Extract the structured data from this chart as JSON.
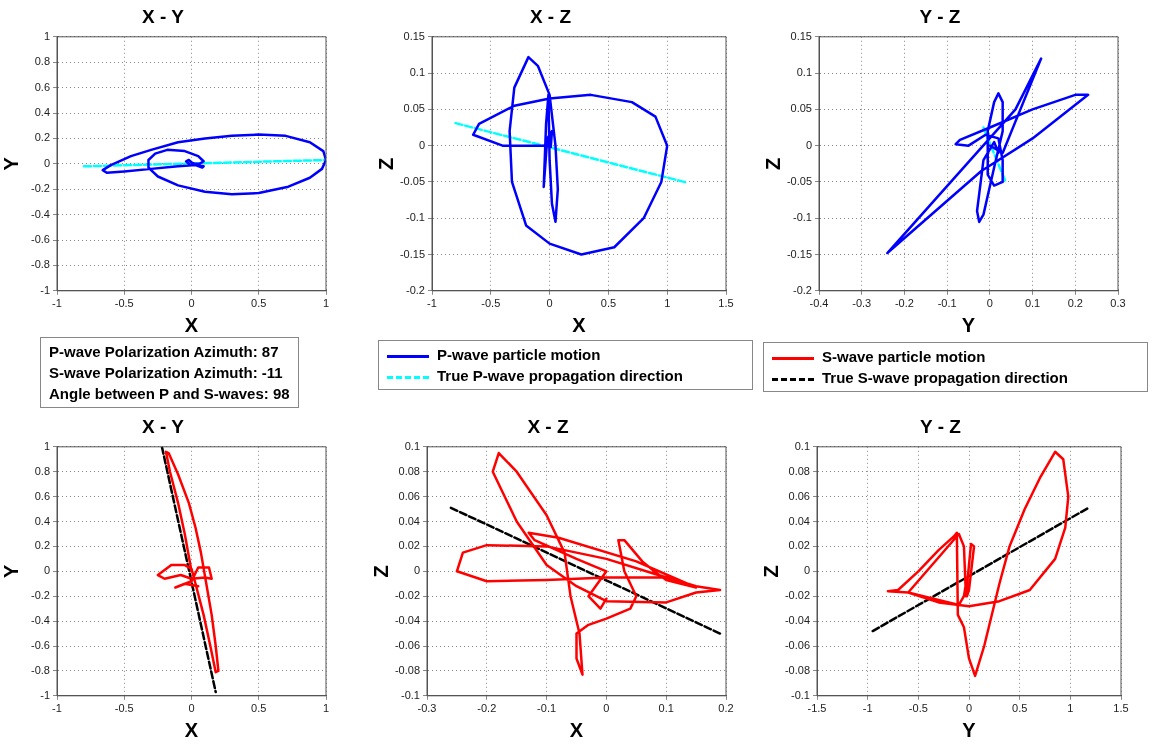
{
  "chart_data": [
    {
      "type": "line",
      "title": "X - Y",
      "xlabel": "X",
      "ylabel": "Y",
      "xlim": [
        -1,
        1
      ],
      "xticks": [
        -1,
        -0.5,
        0,
        0.5,
        1
      ],
      "ylim": [
        -1,
        1
      ],
      "yticks": [
        -1,
        -0.8,
        -0.6,
        -0.4,
        -0.2,
        0,
        0.2,
        0.4,
        0.6,
        0.8,
        1
      ],
      "grid": true,
      "marker": "none",
      "series": [
        {
          "color": "#0000ff",
          "line_style": "solid",
          "x": [
            -0.02,
            -0.04,
            -0.02,
            0,
            0.05,
            0.09,
            0.08,
            0.03,
            -0.1,
            -0.3,
            -0.5,
            -0.63,
            -0.66,
            -0.6,
            -0.45,
            -0.3,
            -0.1,
            0.1,
            0.3,
            0.5,
            0.7,
            0.88,
            0.98,
            1,
            0.97,
            0.88,
            0.72,
            0.5,
            0.3,
            0.1,
            -0.1,
            -0.25,
            -0.32,
            -0.32,
            -0.27,
            -0.18,
            -0.05,
            0.05,
            0.09,
            0.06,
            0
          ],
          "values": [
            0,
            0.02,
            0.03,
            0.01,
            -0.01,
            -0.02,
            -0.03,
            -0.01,
            -0.02,
            -0.04,
            -0.06,
            -0.07,
            -0.05,
            -0.01,
            0.06,
            0.11,
            0.17,
            0.2,
            0.22,
            0.23,
            0.22,
            0.17,
            0.1,
            0.03,
            -0.04,
            -0.11,
            -0.18,
            -0.23,
            -0.24,
            -0.22,
            -0.17,
            -0.1,
            -0.03,
            0.03,
            0.08,
            0.11,
            0.1,
            0.06,
            0.02,
            0,
            0
          ]
        },
        {
          "color": "#00ffff",
          "line_style": "dashed",
          "x": [
            -0.8,
            1
          ],
          "values": [
            -0.02,
            0.03
          ]
        }
      ]
    },
    {
      "type": "line",
      "title": "X - Z",
      "xlabel": "X",
      "ylabel": "Z",
      "xlim": [
        -1,
        1.5
      ],
      "xticks": [
        -1,
        -0.5,
        0,
        0.5,
        1,
        1.5
      ],
      "ylim": [
        -0.2,
        0.15
      ],
      "yticks": [
        -0.2,
        -0.15,
        -0.1,
        -0.05,
        0,
        0.05,
        0.1,
        0.15
      ],
      "grid": true,
      "marker": "none",
      "legend": "bottom",
      "series": [
        {
          "name": "P-wave particle motion",
          "color": "#0000ff",
          "line_style": "solid",
          "x": [
            0,
            -0.4,
            -0.65,
            -0.6,
            -0.3,
            0,
            0.35,
            0.7,
            0.9,
            1.0,
            0.95,
            0.8,
            0.55,
            0.27,
            0,
            -0.2,
            -0.32,
            -0.34,
            -0.3,
            -0.18,
            -0.1,
            0,
            0.05,
            0.07,
            0.05,
            0.02,
            0,
            -0.01,
            -0.03,
            -0.05,
            -0.02,
            0.02,
            0.01
          ],
          "values": [
            0,
            0,
            0.015,
            0.03,
            0.055,
            0.065,
            0.07,
            0.06,
            0.04,
            0,
            -0.05,
            -0.1,
            -0.14,
            -0.15,
            -0.135,
            -0.11,
            -0.05,
            0.02,
            0.08,
            0.122,
            0.11,
            0.07,
            0,
            -0.06,
            -0.105,
            -0.08,
            -0.02,
            0.07,
            0.03,
            -0.057,
            0.01,
            0.02,
            -0.002
          ]
        },
        {
          "name": "True P-wave propagation direction",
          "color": "#00ffff",
          "line_style": "dashed",
          "x": [
            -0.8,
            1.17
          ],
          "values": [
            0.031,
            -0.051
          ]
        }
      ]
    },
    {
      "type": "line",
      "title": "Y - Z",
      "xlabel": "Y",
      "ylabel": "Z",
      "xlim": [
        -0.4,
        0.3
      ],
      "xticks": [
        -0.4,
        -0.3,
        -0.2,
        -0.1,
        0,
        0.1,
        0.2,
        0.3
      ],
      "ylim": [
        -0.2,
        0.15
      ],
      "yticks": [
        -0.2,
        -0.15,
        -0.1,
        -0.05,
        0,
        0.05,
        0.1,
        0.15
      ],
      "grid": true,
      "marker": "none",
      "series": [
        {
          "color": "#0000ff",
          "line_style": "solid",
          "x": [
            0,
            0.03,
            0.12,
            0.06,
            -0.24,
            -0.02,
            0.1,
            0.23,
            0.2,
            0.1,
            0,
            -0.07,
            -0.08,
            -0.05,
            -0.01,
            0.02,
            0.03,
            0.03,
            0.01,
            -0.005,
            -0.005,
            0.01,
            0.02,
            0.03,
            0.03,
            0.01,
            -0.015,
            -0.025,
            -0.03,
            -0.015,
            0.01,
            0.02
          ],
          "values": [
            0,
            -0.01,
            0.12,
            0.05,
            -0.148,
            -0.035,
            0.01,
            0.07,
            0.07,
            0.05,
            0.025,
            0.008,
            0.002,
            0,
            0.015,
            0.01,
            -0.02,
            -0.05,
            -0.055,
            -0.04,
            0.02,
            0.06,
            0.072,
            0.06,
            0.02,
            -0.03,
            -0.095,
            -0.105,
            -0.09,
            -0.02,
            0.005,
            -0.01
          ]
        },
        {
          "color": "#00ffff",
          "line_style": "dashed",
          "x": [
            -0.015,
            0.037
          ],
          "values": [
            0.025,
            -0.05
          ]
        }
      ]
    },
    {
      "type": "line",
      "title": "X - Y",
      "xlabel": "X",
      "ylabel": "Y",
      "xlim": [
        -1,
        1
      ],
      "xticks": [
        -1,
        -0.5,
        0,
        0.5,
        1
      ],
      "ylim": [
        -1,
        1
      ],
      "yticks": [
        -1,
        -0.8,
        -0.6,
        -0.4,
        -0.2,
        0,
        0.2,
        0.4,
        0.6,
        0.8,
        1
      ],
      "grid": true,
      "marker": "none",
      "annotations": [
        "P-wave Polarization Azimuth: 87",
        "S-wave Polarization Azimuth: -11",
        "Angle between P and S-waves: 98"
      ],
      "series": [
        {
          "color": "#ff0000",
          "line_style": "solid",
          "x": [
            0,
            -0.05,
            -0.1,
            -0.16,
            -0.19,
            -0.17,
            -0.1,
            -0.02,
            0.03,
            0.07,
            0.11,
            0.15,
            0.18,
            0.2,
            0.18,
            0.14,
            0.09,
            0.03,
            0,
            -0.05,
            -0.15,
            -0.25,
            -0.2,
            -0.08,
            0,
            0.1,
            0.15,
            0.13,
            0.05,
            0,
            -0.12,
            -0.05,
            0.05
          ],
          "values": [
            0,
            0.3,
            0.55,
            0.8,
            0.96,
            0.95,
            0.78,
            0.55,
            0.35,
            0.15,
            -0.1,
            -0.35,
            -0.6,
            -0.8,
            -0.81,
            -0.6,
            -0.35,
            -0.1,
            0.02,
            0.05,
            0.05,
            -0.03,
            -0.06,
            -0.03,
            -0.06,
            -0.05,
            -0.06,
            0.03,
            0.03,
            -0.08,
            -0.13,
            -0.1,
            -0.12
          ]
        },
        {
          "color": "#000000",
          "line_style": "dashed",
          "x": [
            -0.22,
            0.18
          ],
          "values": [
            1,
            -0.97
          ]
        }
      ]
    },
    {
      "type": "line",
      "title": "X - Z",
      "xlabel": "X",
      "ylabel": "Z",
      "xlim": [
        -0.3,
        0.2
      ],
      "xticks": [
        -0.3,
        -0.2,
        -0.1,
        0,
        0.1,
        0.2
      ],
      "ylim": [
        -0.1,
        0.1
      ],
      "yticks": [
        -0.1,
        -0.08,
        -0.06,
        -0.04,
        -0.02,
        0,
        0.02,
        0.04,
        0.06,
        0.08,
        0.1
      ],
      "grid": true,
      "marker": "none",
      "series": [
        {
          "color": "#ff0000",
          "line_style": "solid",
          "x": [
            0.15,
            0.1,
            0,
            -0.1,
            -0.2,
            -0.25,
            -0.24,
            -0.2,
            -0.1,
            0,
            0.08,
            0.15,
            0.19,
            0.15,
            0.1,
            0,
            -0.05,
            -0.1,
            -0.15,
            -0.19,
            -0.18,
            -0.15,
            -0.1,
            -0.07,
            -0.06,
            -0.045,
            -0.04,
            -0.05,
            -0.05,
            -0.03,
            0,
            0.04,
            0.05,
            0.03,
            0.02,
            0.03,
            0.06,
            0.08,
            0.1,
            0.15,
            0.05,
            -0.08,
            -0.13,
            -0.12,
            -0.05,
            0,
            -0.03,
            -0.01,
            0
          ],
          "values": [
            -0.012,
            -0.005,
            -0.005,
            -0.007,
            -0.008,
            0,
            0.015,
            0.021,
            0.02,
            0.01,
            -0.002,
            -0.012,
            -0.015,
            -0.017,
            -0.025,
            -0.024,
            -0.012,
            0.005,
            0.04,
            0.08,
            0.095,
            0.08,
            0.045,
            0.015,
            -0.02,
            -0.05,
            -0.083,
            -0.07,
            -0.05,
            -0.043,
            -0.038,
            -0.03,
            -0.02,
            0,
            0.025,
            0.025,
            0.008,
            0,
            -0.007,
            -0.013,
            0.008,
            0.027,
            0.031,
            0.025,
            0.01,
            0,
            -0.02,
            -0.03,
            -0.022
          ]
        },
        {
          "color": "#000000",
          "line_style": "dashed",
          "x": [
            -0.26,
            0.19
          ],
          "values": [
            0.051,
            -0.05
          ]
        }
      ]
    },
    {
      "type": "line",
      "title": "Y - Z",
      "xlabel": "Y",
      "ylabel": "Z",
      "xlim": [
        -1.5,
        1.5
      ],
      "xticks": [
        -1.5,
        -1,
        -0.5,
        0,
        0.5,
        1,
        1.5
      ],
      "ylim": [
        -0.1,
        0.1
      ],
      "yticks": [
        -0.1,
        -0.08,
        -0.06,
        -0.04,
        -0.02,
        0,
        0.02,
        0.04,
        0.06,
        0.08,
        0.1
      ],
      "grid": true,
      "marker": "none",
      "legend": "top",
      "series": [
        {
          "name": "S-wave particle motion",
          "color": "#ff0000",
          "line_style": "solid",
          "x": [
            -0.02,
            -0.05,
            -0.1,
            -0.6,
            -0.8,
            -0.7,
            -0.5,
            -0.3,
            -0.15,
            -0.12,
            -0.11,
            -0.05,
            0,
            0.06,
            0.15,
            0.3,
            0.4,
            0.55,
            0.7,
            0.85,
            0.93,
            0.98,
            0.95,
            0.85,
            0.6,
            0.3,
            0,
            -0.3,
            -0.6,
            -0.1,
            -0.05,
            -0.03,
            0.02,
            0.05,
            0,
            -0.02
          ],
          "values": [
            -0.005,
            -0.02,
            -0.027,
            -0.017,
            -0.016,
            -0.015,
            0,
            0.017,
            0.028,
            0.031,
            -0.035,
            -0.045,
            -0.07,
            -0.084,
            -0.06,
            -0.01,
            0.02,
            0.05,
            0.075,
            0.096,
            0.09,
            0.06,
            0.035,
            0.01,
            -0.015,
            -0.024,
            -0.028,
            -0.025,
            -0.017,
            0.03,
            0.02,
            -0.02,
            0.022,
            0.02,
            -0.015,
            -0.02
          ]
        },
        {
          "name": "True S-wave propagation direction",
          "color": "#000000",
          "line_style": "dashed",
          "x": [
            -0.95,
            1.18
          ],
          "values": [
            -0.048,
            0.051
          ]
        }
      ]
    }
  ]
}
